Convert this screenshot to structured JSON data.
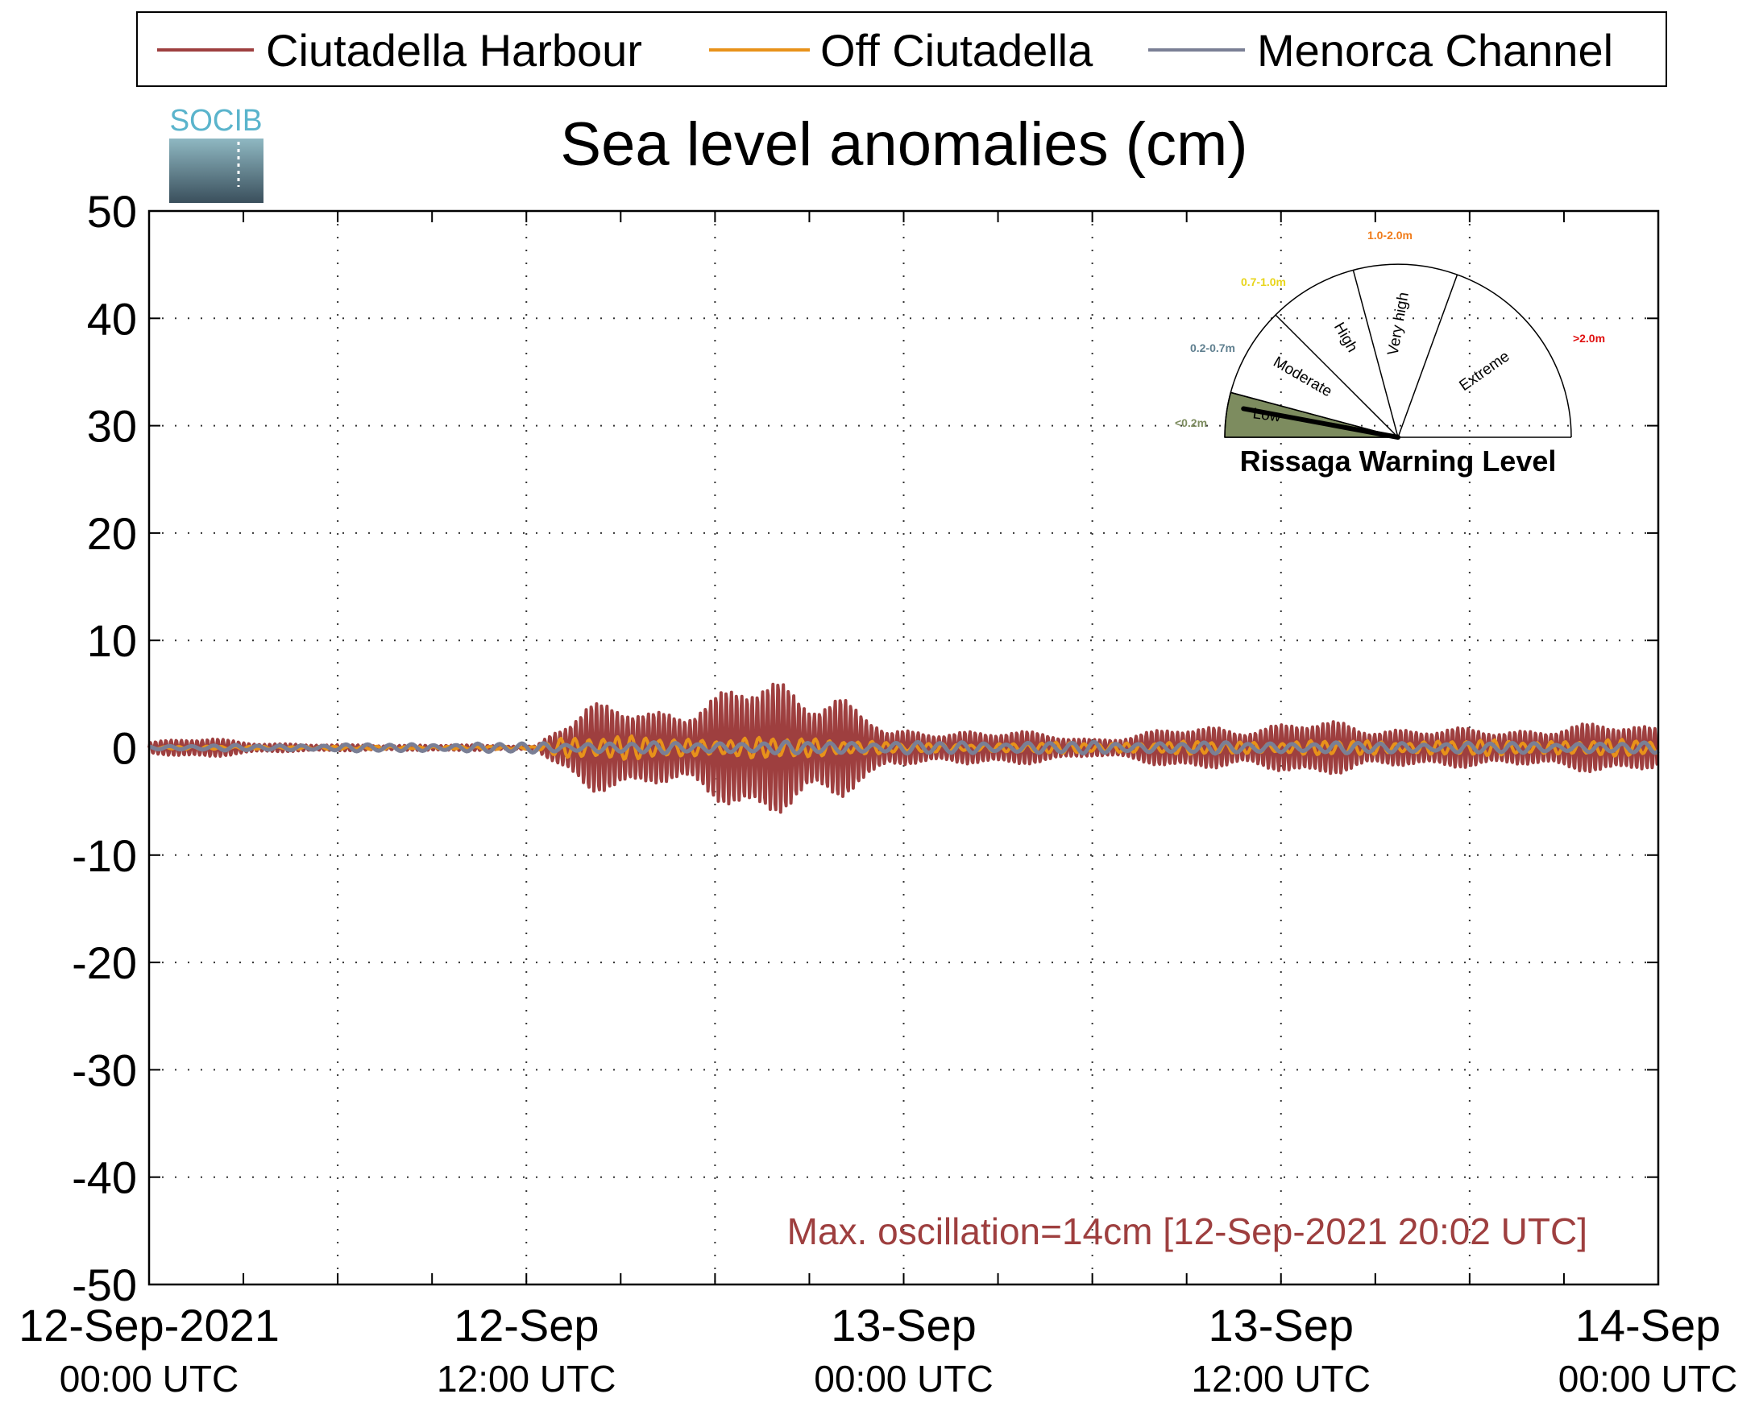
{
  "chart_data": {
    "type": "line",
    "title": "Sea level anomalies (cm)",
    "xlabel": "",
    "ylabel": "",
    "ylim": [
      -50,
      50
    ],
    "yticks": [
      50,
      40,
      30,
      20,
      10,
      0,
      -10,
      -20,
      -30,
      -40,
      -50
    ],
    "xlim": [
      "2021-09-12 00:00",
      "2021-09-14 00:00"
    ],
    "xticks": [
      {
        "line1": "12-Sep-2021",
        "line2": "00:00 UTC",
        "hours": 0
      },
      {
        "line1": "12-Sep",
        "line2": "12:00 UTC",
        "hours": 12
      },
      {
        "line1": "13-Sep",
        "line2": "00:00 UTC",
        "hours": 24
      },
      {
        "line1": "13-Sep",
        "line2": "12:00 UTC",
        "hours": 36
      },
      {
        "line1": "14-Sep",
        "line2": "00:00 UTC",
        "hours": 48
      }
    ],
    "grid": true,
    "legend_position": "top",
    "series": [
      {
        "name": "Ciutadella Harbour",
        "color": "#9e3f3f",
        "amplitude_envelope": [
          {
            "hours": 0,
            "amp": 0.6
          },
          {
            "hours": 2,
            "amp": 1.0
          },
          {
            "hours": 3.5,
            "amp": 0.6
          },
          {
            "hours": 5,
            "amp": 0.3
          },
          {
            "hours": 9,
            "amp": 0.3
          },
          {
            "hours": 12.3,
            "amp": 0.2
          },
          {
            "hours": 13,
            "amp": 2.5
          },
          {
            "hours": 14,
            "amp": 4.2
          },
          {
            "hours": 16,
            "amp": 4.0
          },
          {
            "hours": 18,
            "amp": 5.5
          },
          {
            "hours": 20,
            "amp": 6.8
          },
          {
            "hours": 22,
            "amp": 5.8
          },
          {
            "hours": 23.5,
            "amp": 1.5
          },
          {
            "hours": 26,
            "amp": 2.0
          },
          {
            "hours": 30,
            "amp": 1.0
          },
          {
            "hours": 34,
            "amp": 2.3
          },
          {
            "hours": 38,
            "amp": 2.6
          },
          {
            "hours": 41,
            "amp": 1.8
          },
          {
            "hours": 45,
            "amp": 2.2
          },
          {
            "hours": 48,
            "amp": 2.5
          }
        ]
      },
      {
        "name": "Off Ciutadella",
        "color": "#e8921a",
        "amplitude_envelope": [
          {
            "hours": 0,
            "amp": 0.15
          },
          {
            "hours": 12.3,
            "amp": 0.15
          },
          {
            "hours": 13,
            "amp": 1.2
          },
          {
            "hours": 18,
            "amp": 1.0
          },
          {
            "hours": 22,
            "amp": 1.0
          },
          {
            "hours": 24,
            "amp": 0.4
          },
          {
            "hours": 36,
            "amp": 0.7
          },
          {
            "hours": 48,
            "amp": 0.8
          }
        ]
      },
      {
        "name": "Menorca Channel",
        "color": "#7a7f95",
        "amplitude_envelope": [
          {
            "hours": 0,
            "amp": 0.2
          },
          {
            "hours": 13,
            "amp": 0.5
          },
          {
            "hours": 22,
            "amp": 0.6
          },
          {
            "hours": 48,
            "amp": 0.5
          }
        ]
      }
    ],
    "annotation": "Max. oscillation=14cm [12-Sep-2021 20:02 UTC]",
    "annotation_color": "#9e3f3f"
  },
  "logo_text": "SOCIB",
  "gauge": {
    "title": "Rissaga Warning Level",
    "current_level": "Low",
    "current_value_m": 0.14,
    "sectors": [
      {
        "name": "Low",
        "range": "<0.2m",
        "color": "#7d8c5f"
      },
      {
        "name": "Moderate",
        "range": "0.2-0.7m",
        "color": "#5f7f8f"
      },
      {
        "name": "High",
        "range": "0.7-1.0m",
        "color": "#e8d51a"
      },
      {
        "name": "Very high",
        "range": "1.0-2.0m",
        "color": "#f07c1a"
      },
      {
        "name": "Extreme",
        "range": ">2.0m",
        "color": "#e01010"
      }
    ]
  }
}
